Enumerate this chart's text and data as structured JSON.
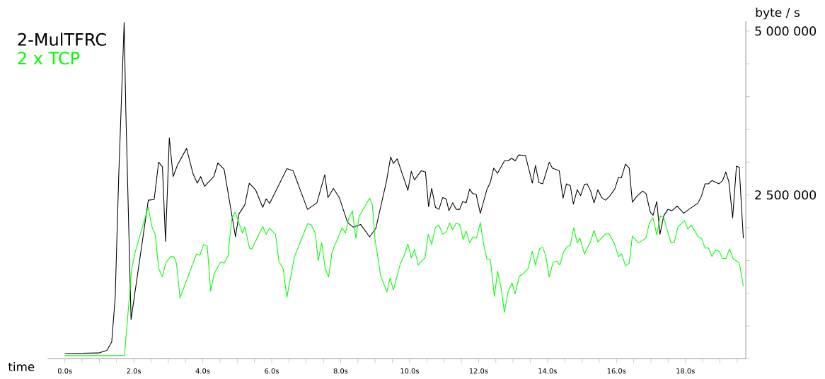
{
  "chart_data": {
    "type": "line",
    "xlabel": "time",
    "ylabel": "byte / s",
    "legend": "top left",
    "marker": "none",
    "line_style": "solid",
    "xlim": [
      -0.5,
      19.75
    ],
    "ylim": [
      0,
      5150000
    ],
    "xticks": [
      {
        "value": 0,
        "label": "0.0s"
      },
      {
        "value": 0.5,
        "label": null
      },
      {
        "value": 1,
        "label": null
      },
      {
        "value": 1.5,
        "label": null
      },
      {
        "value": 2,
        "label": "2.0s"
      },
      {
        "value": 2.5,
        "label": null
      },
      {
        "value": 3,
        "label": null
      },
      {
        "value": 3.5,
        "label": null
      },
      {
        "value": 4,
        "label": "4.0s"
      },
      {
        "value": 4.5,
        "label": null
      },
      {
        "value": 5,
        "label": null
      },
      {
        "value": 5.5,
        "label": null
      },
      {
        "value": 6,
        "label": "6.0s"
      },
      {
        "value": 6.5,
        "label": null
      },
      {
        "value": 7,
        "label": null
      },
      {
        "value": 7.5,
        "label": null
      },
      {
        "value": 8,
        "label": "8.0s"
      },
      {
        "value": 8.5,
        "label": null
      },
      {
        "value": 9,
        "label": null
      },
      {
        "value": 9.5,
        "label": null
      },
      {
        "value": 10,
        "label": "10.0s"
      },
      {
        "value": 10.5,
        "label": null
      },
      {
        "value": 11,
        "label": null
      },
      {
        "value": 11.5,
        "label": null
      },
      {
        "value": 12,
        "label": "12.0s"
      },
      {
        "value": 12.5,
        "label": null
      },
      {
        "value": 13,
        "label": null
      },
      {
        "value": 13.5,
        "label": null
      },
      {
        "value": 14,
        "label": "14.0s"
      },
      {
        "value": 14.5,
        "label": null
      },
      {
        "value": 15,
        "label": null
      },
      {
        "value": 15.5,
        "label": null
      },
      {
        "value": 16,
        "label": "16.0s"
      },
      {
        "value": 16.5,
        "label": null
      },
      {
        "value": 17,
        "label": null
      },
      {
        "value": 17.5,
        "label": null
      },
      {
        "value": 18,
        "label": "18.0s"
      },
      {
        "value": 18.5,
        "label": null
      },
      {
        "value": 19,
        "label": null
      },
      {
        "value": 19.5,
        "label": null
      }
    ],
    "yticks": [
      {
        "value": 0,
        "label": null
      },
      {
        "value": 500000,
        "label": null
      },
      {
        "value": 1000000,
        "label": null
      },
      {
        "value": 1500000,
        "label": null
      },
      {
        "value": 2000000,
        "label": null
      },
      {
        "value": 2500000,
        "label": "2 500 000"
      },
      {
        "value": 3000000,
        "label": null
      },
      {
        "value": 3500000,
        "label": null
      },
      {
        "value": 4000000,
        "label": null
      },
      {
        "value": 4500000,
        "label": null
      },
      {
        "value": 5000000,
        "label": "5 000 000"
      }
    ],
    "series": [
      {
        "name": "2-MulTFRC",
        "color": "#000000",
        "x": [
          0.0,
          0.98,
          1.22,
          1.36,
          1.46,
          1.56,
          1.72,
          1.77,
          1.92,
          2.42,
          2.59,
          2.72,
          2.83,
          2.92,
          3.03,
          3.14,
          3.27,
          3.53,
          3.72,
          3.84,
          3.94,
          4.05,
          4.32,
          4.44,
          4.62,
          4.95,
          5.05,
          5.22,
          5.35,
          5.53,
          5.74,
          5.84,
          5.94,
          6.44,
          6.62,
          6.86,
          7.04,
          7.31,
          7.54,
          7.63,
          7.79,
          7.96,
          8.2,
          8.36,
          8.58,
          8.84,
          9.02,
          9.33,
          9.45,
          9.53,
          9.64,
          9.95,
          10.05,
          10.14,
          10.34,
          10.46,
          10.55,
          10.64,
          10.75,
          10.85,
          10.96,
          11.06,
          11.14,
          11.25,
          11.35,
          11.45,
          11.54,
          11.64,
          11.74,
          11.83,
          11.93,
          12.05,
          12.24,
          12.34,
          12.44,
          12.55,
          12.75,
          12.86,
          12.96,
          13.06,
          13.16,
          13.36,
          13.56,
          13.65,
          13.75,
          13.86,
          14.05,
          14.14,
          14.34,
          14.45,
          14.55,
          14.66,
          14.75,
          14.86,
          14.96,
          15.07,
          15.15,
          15.25,
          15.35,
          15.46,
          15.57,
          15.68,
          15.8,
          15.95,
          16.06,
          16.14,
          16.26,
          16.37,
          16.46,
          16.59,
          16.76,
          16.86,
          16.98,
          17.06,
          17.17,
          17.26,
          17.37,
          17.49,
          17.61,
          17.76,
          17.95,
          18.13,
          18.37,
          18.47,
          18.57,
          18.67,
          18.77,
          18.97,
          19.08,
          19.17,
          19.26,
          19.37,
          19.48,
          19.56,
          19.68
        ],
        "values": [
          80000,
          90000,
          130000,
          260000,
          940000,
          2740000,
          5130000,
          3750000,
          600000,
          2420000,
          2430000,
          3000000,
          2930000,
          1790000,
          3370000,
          2780000,
          2960000,
          3210000,
          2820000,
          2680000,
          2780000,
          2630000,
          2780000,
          2990000,
          2890000,
          1860000,
          2210000,
          2350000,
          2680000,
          2580000,
          2310000,
          2440000,
          2370000,
          2900000,
          2870000,
          2530000,
          2280000,
          2380000,
          2810000,
          2460000,
          2600000,
          2460000,
          2080000,
          2010000,
          2050000,
          1860000,
          1990000,
          2710000,
          3080000,
          2980000,
          3050000,
          2570000,
          2860000,
          2730000,
          2870000,
          2850000,
          2320000,
          2600000,
          2310000,
          2280000,
          2460000,
          2440000,
          2260000,
          2380000,
          2280000,
          2280000,
          2400000,
          2380000,
          2590000,
          2520000,
          2510000,
          2220000,
          2580000,
          2690000,
          2910000,
          2830000,
          3020000,
          3020000,
          3060000,
          3020000,
          3110000,
          3100000,
          2680000,
          2950000,
          2690000,
          2670000,
          3000000,
          2910000,
          2870000,
          2450000,
          2670000,
          2640000,
          2360000,
          2580000,
          2490000,
          2660000,
          2670000,
          2560000,
          2380000,
          2580000,
          2460000,
          2420000,
          2480000,
          2590000,
          2770000,
          2760000,
          2970000,
          2910000,
          2390000,
          2480000,
          2560000,
          2520000,
          2240000,
          2190000,
          2400000,
          1900000,
          2180000,
          2280000,
          2260000,
          2330000,
          2220000,
          2290000,
          2380000,
          2490000,
          2670000,
          2670000,
          2720000,
          2670000,
          2720000,
          2850000,
          2700000,
          2150000,
          2940000,
          2920000,
          1840000
        ]
      },
      {
        "name": "2 x TCP",
        "color": "#00ff00",
        "x": [
          0.0,
          1.73,
          1.94,
          2.04,
          2.42,
          2.52,
          2.62,
          2.72,
          2.83,
          2.93,
          3.07,
          3.16,
          3.24,
          3.34,
          3.82,
          3.92,
          4.02,
          4.13,
          4.23,
          4.33,
          4.52,
          4.62,
          4.73,
          4.84,
          4.94,
          5.15,
          5.22,
          5.36,
          5.43,
          5.74,
          5.84,
          5.94,
          6.11,
          6.21,
          6.33,
          6.44,
          6.66,
          7.04,
          7.14,
          7.26,
          7.35,
          7.45,
          7.55,
          7.65,
          7.75,
          8.04,
          8.14,
          8.24,
          8.34,
          8.44,
          8.54,
          8.84,
          8.92,
          9.0,
          9.16,
          9.34,
          9.43,
          9.53,
          9.73,
          9.84,
          9.95,
          10.05,
          10.14,
          10.25,
          10.36,
          10.45,
          10.54,
          10.64,
          10.75,
          10.85,
          10.96,
          11.06,
          11.16,
          11.25,
          11.35,
          11.45,
          11.55,
          11.64,
          11.74,
          11.84,
          11.94,
          12.05,
          12.14,
          12.24,
          12.34,
          12.46,
          12.55,
          12.65,
          12.75,
          12.86,
          12.97,
          13.06,
          13.18,
          13.3,
          13.44,
          13.56,
          13.65,
          13.77,
          13.86,
          13.95,
          14.05,
          14.16,
          14.26,
          14.36,
          14.46,
          14.57,
          14.66,
          14.76,
          14.86,
          14.94,
          15.07,
          15.25,
          15.35,
          15.46,
          15.66,
          15.78,
          15.93,
          16.06,
          16.15,
          16.26,
          16.37,
          16.46,
          16.64,
          16.85,
          16.96,
          17.06,
          17.17,
          17.27,
          17.37,
          17.58,
          17.68,
          17.78,
          17.97,
          18.07,
          18.17,
          18.37,
          18.47,
          18.57,
          18.67,
          18.77,
          18.87,
          18.98,
          19.08,
          19.18,
          19.28,
          19.39,
          19.56,
          19.68
        ],
        "values": [
          50000,
          50000,
          1380000,
          1630000,
          2320000,
          2020000,
          1900000,
          1380000,
          1250000,
          1470000,
          1560000,
          1560000,
          1450000,
          930000,
          1600000,
          1580000,
          1740000,
          1720000,
          1030000,
          1300000,
          1480000,
          1460000,
          1570000,
          2130000,
          2240000,
          1920000,
          2010000,
          1680000,
          1680000,
          2020000,
          1900000,
          1990000,
          1900000,
          1480000,
          1380000,
          940000,
          1560000,
          2060000,
          2050000,
          1920000,
          1500000,
          1770000,
          1380000,
          1250000,
          1630000,
          2000000,
          1920000,
          2150000,
          2260000,
          1840000,
          2180000,
          2450000,
          2350000,
          1810000,
          1270000,
          1020000,
          1230000,
          1050000,
          1450000,
          1570000,
          1750000,
          1540000,
          1670000,
          1430000,
          1500000,
          1540000,
          1900000,
          1750000,
          2010000,
          2040000,
          1900000,
          1940000,
          2070000,
          1970000,
          2070000,
          2050000,
          1820000,
          1950000,
          1770000,
          1860000,
          1840000,
          2080000,
          1770000,
          1520000,
          1520000,
          950000,
          1340000,
          1090000,
          710000,
          1030000,
          1160000,
          990000,
          1260000,
          1300000,
          1380000,
          1640000,
          1430000,
          1680000,
          1700000,
          1570000,
          1250000,
          1470000,
          1490000,
          1430000,
          1630000,
          1710000,
          1730000,
          2000000,
          1770000,
          1840000,
          1600000,
          1790000,
          1960000,
          1780000,
          1900000,
          1910000,
          1770000,
          1560000,
          1600000,
          1420000,
          1460000,
          1870000,
          1770000,
          1840000,
          2080000,
          2150000,
          1890000,
          2180000,
          2150000,
          1770000,
          1780000,
          2010000,
          2110000,
          1980000,
          2040000,
          1860000,
          1840000,
          1690000,
          1690000,
          1560000,
          1660000,
          1640000,
          1530000,
          1530000,
          1680000,
          1520000,
          1470000,
          1110000
        ]
      }
    ]
  }
}
